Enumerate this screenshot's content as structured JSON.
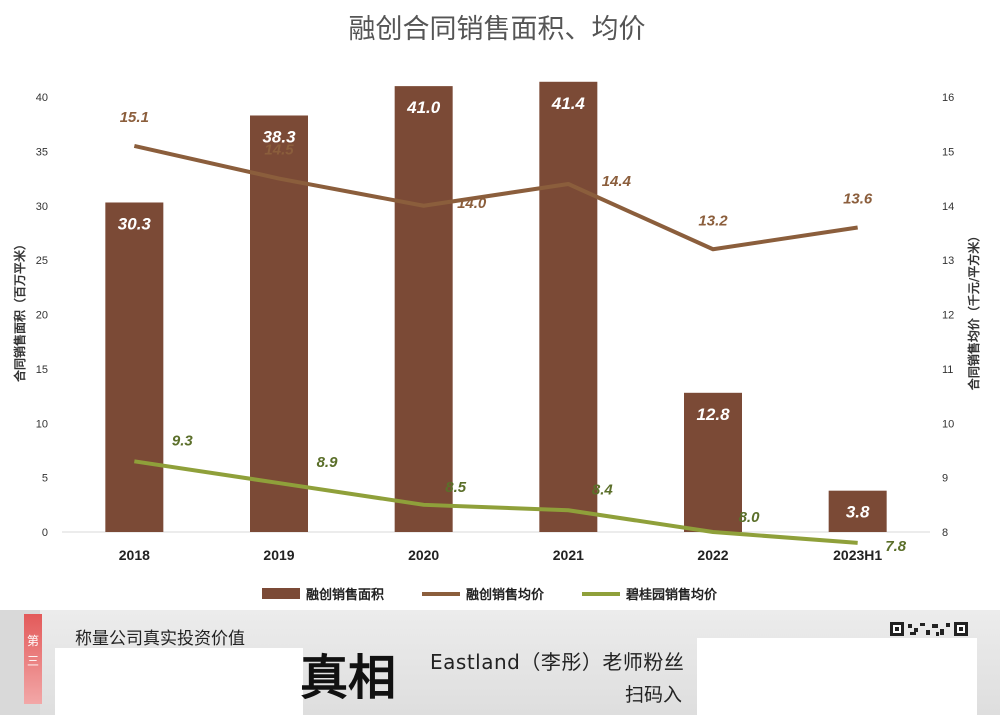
{
  "chart_data": {
    "type": "bar+line",
    "title": "融创合同销售面积、均价",
    "categories": [
      "2018",
      "2019",
      "2020",
      "2021",
      "2022",
      "2023H1"
    ],
    "bar_series": {
      "name": "融创销售面积",
      "values": [
        30.3,
        38.3,
        41.0,
        41.4,
        12.8,
        3.8
      ],
      "axis": "left",
      "color": "#7B4A36"
    },
    "line_series": [
      {
        "name": "融创销售均价",
        "values": [
          15.1,
          14.5,
          14.0,
          14.4,
          13.2,
          13.6
        ],
        "axis": "right",
        "color": "#8B5E3C"
      },
      {
        "name": "碧桂园销售均价",
        "values": [
          9.3,
          8.9,
          8.5,
          8.4,
          8.0,
          7.8
        ],
        "axis": "right",
        "color": "#8FA03A"
      }
    ],
    "y_left": {
      "label": "合同销售面积（百万平米）",
      "ylim": [
        0,
        40
      ],
      "ticks": [
        "0",
        "5",
        "10",
        "15",
        "20",
        "25",
        "30",
        "35",
        "40"
      ]
    },
    "y_right": {
      "label": "合同销售均价（千元/平方米）",
      "ylim": [
        8,
        16
      ],
      "ticks": [
        "8",
        "9",
        "10",
        "11",
        "12",
        "13",
        "14",
        "15",
        "16"
      ]
    },
    "grid": false,
    "legend_position": "bottom"
  },
  "banner": {
    "slogan": "称量公司真实投资价值",
    "big_text": "真相",
    "main_text": "Eastland（李彤）老师粉丝",
    "sub_text": "扫码入",
    "tag_char_1": "第",
    "tag_char_2": "三"
  }
}
